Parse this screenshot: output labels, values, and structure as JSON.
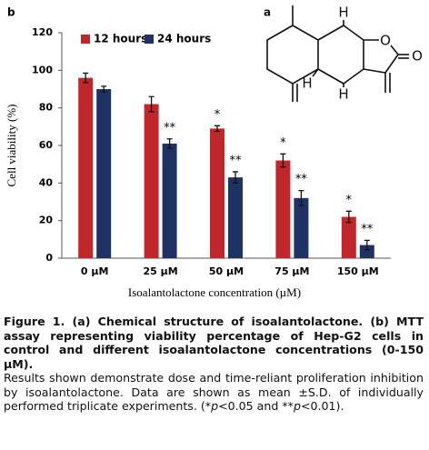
{
  "chart_data": {
    "type": "bar",
    "panel_label": "b",
    "categories": [
      "0 µM",
      "25 µM",
      "50 µM",
      "75 µM",
      "150 µM"
    ],
    "series": [
      {
        "name": "12 hours",
        "color": "#c0272d",
        "values": [
          96,
          82,
          69,
          52,
          22
        ],
        "errors": [
          2.5,
          4,
          1.5,
          3.5,
          3
        ],
        "significance": [
          null,
          null,
          "*",
          "*",
          "*"
        ]
      },
      {
        "name": "24 hours",
        "color": "#1f3264",
        "values": [
          90,
          61,
          43,
          32,
          7
        ],
        "errors": [
          1.5,
          2.5,
          3,
          4,
          2.5
        ],
        "significance": [
          null,
          "**",
          "**",
          "**",
          "**"
        ]
      }
    ],
    "ylim": [
      0,
      120
    ],
    "yticks": [
      0,
      20,
      40,
      60,
      80,
      100,
      120
    ],
    "y_label": "Cell viability (%)",
    "x_label": "Isoalantolactone concentration (µM)",
    "legend": "top-left"
  },
  "structure": {
    "panel_label": "a",
    "atoms": [
      "H",
      "O",
      "O",
      "H",
      "H"
    ]
  },
  "caption": {
    "title": "Figure 1. (a) Chemical structure of isoalantolactone. (b) MTT assay representing viability percentage of Hep-G2 cells in control and different isoalantolactone concentrations (0-150 µM).",
    "body": [
      "Results shown demonstrate dose and time-reliant proliferation inhibition by isoalantolactone. Data are shown as mean ±S.D. of individually performed triplicate experiments. (*",
      "p",
      "<0.05 and **",
      "p",
      "<0.01)."
    ]
  }
}
